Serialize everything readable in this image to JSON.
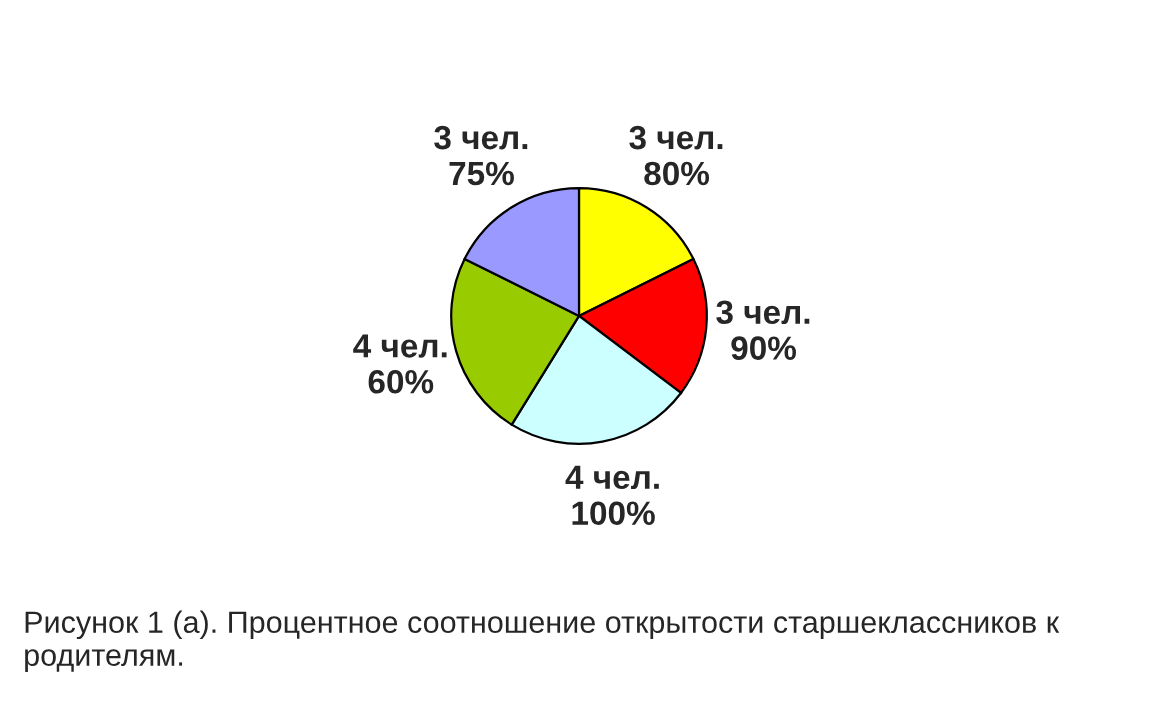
{
  "chart_data": {
    "type": "pie",
    "categories": [
      null,
      null,
      null,
      null,
      null
    ],
    "values": [
      3,
      3,
      4,
      4,
      3
    ],
    "value_labels": [
      "3 чел.\n80%",
      "3 чел.\n90%",
      "4 чел.\n100%",
      "4 чел.\n60%",
      "3 чел.\n75%"
    ],
    "colors": [
      "#ffff00",
      "#ff0000",
      "#ccffff",
      "#99cc00",
      "#9999ff"
    ],
    "annotations": [
      "Рисунок 1 (а). Процентное соотношение открытости старшеклассников к родителям."
    ]
  }
}
